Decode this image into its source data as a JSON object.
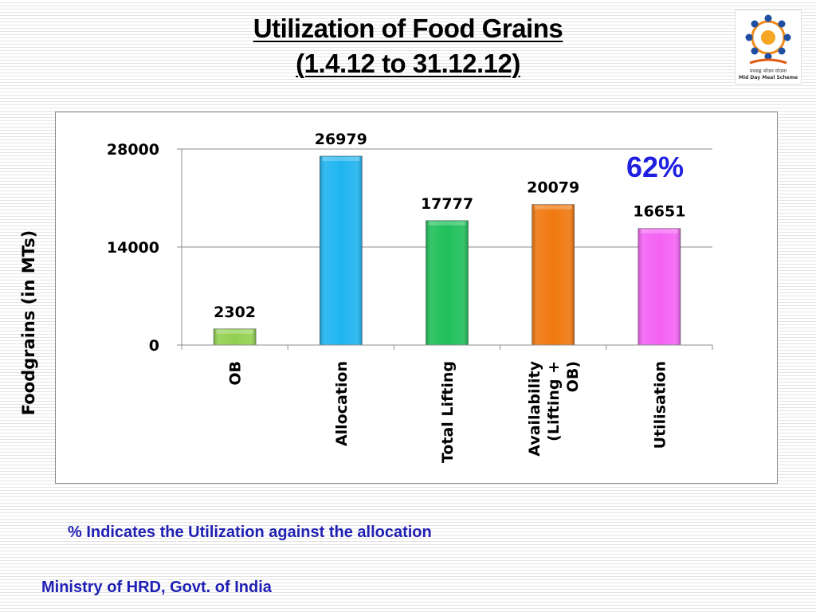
{
  "slide": {
    "title_line1": "Utilization of Food Grains",
    "title_line2": "(1.4.12 to 31.12.12)",
    "footnote": "% Indicates the Utilization against the allocation",
    "footer": "Ministry of HRD, Govt. of India",
    "accent_color": "#1f1fb4"
  },
  "logo": {
    "caption_hindi": "मध्याह्न भोजन योजना",
    "caption_english": "Mid Day Meal Scheme"
  },
  "chart_data": {
    "type": "bar",
    "title": "",
    "xlabel": "",
    "ylabel": "Foodgrains (in MTs)",
    "ylim": [
      0,
      28000
    ],
    "yticks": [
      "0",
      "14000",
      "28000"
    ],
    "grid": true,
    "categories": [
      [
        "OB"
      ],
      [
        "Allocation"
      ],
      [
        "Total Lifting"
      ],
      [
        "Availability",
        "(Lifting +",
        "OB)"
      ],
      [
        "Utilisation"
      ]
    ],
    "values": [
      2302,
      26979,
      17777,
      20079,
      16651
    ],
    "bar_colors": [
      "#92d050",
      "#1fb4f0",
      "#1fbf5a",
      "#f0780f",
      "#f462f4"
    ],
    "annotation": "62%",
    "annotation_color": "#1f1fe0"
  }
}
